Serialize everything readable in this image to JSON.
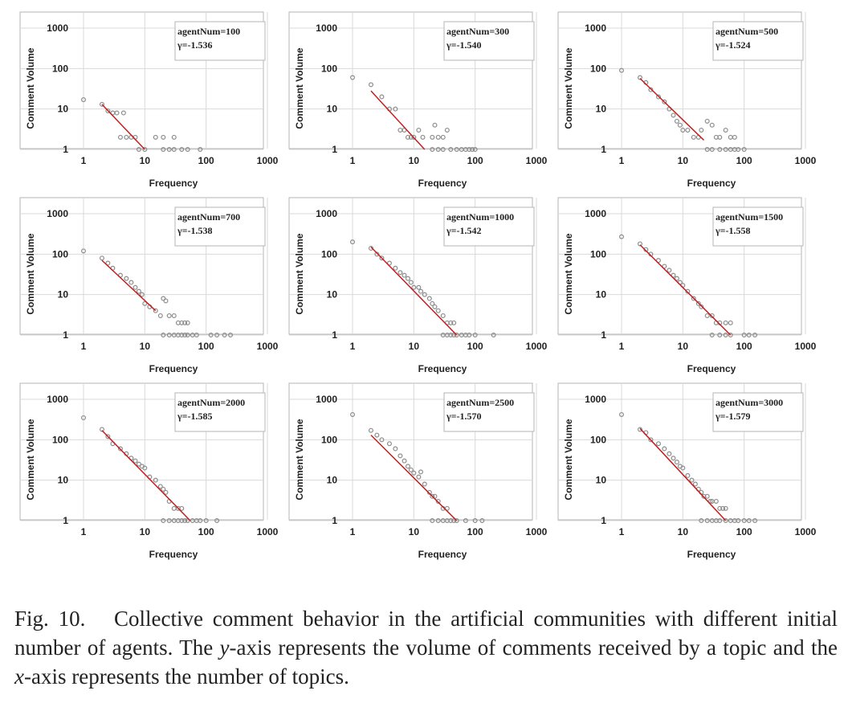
{
  "caption": {
    "label": "Fig. 10.",
    "text_before_y": "Collective comment behavior in the artificial communities with different initial number of agents. The ",
    "y_var": "y",
    "text_between": "-axis represents the volume of comments received by a topic and the ",
    "x_var": "x",
    "text_after_x": "-axis represents the number of topics."
  },
  "colors": {
    "points": "#8c8c8c",
    "fit_line": "#c02020",
    "grid": "#d9d9d9",
    "frame": "#b5b5b5"
  },
  "chart_data": [
    {
      "type": "scatter",
      "scale": "log-log",
      "xlabel": "Frequency",
      "ylabel": "Comment Volume",
      "xlim": [
        1,
        1000
      ],
      "ylim": [
        1,
        1000
      ],
      "xticks": [
        "1",
        "10",
        "100",
        "1000"
      ],
      "yticks": [
        "1",
        "10",
        "100",
        "1000"
      ],
      "grid": true,
      "legend_position": "top-right",
      "legend": [
        "agentNum=100",
        "γ=-1.536"
      ],
      "points": [
        [
          1,
          17
        ],
        [
          2,
          13
        ],
        [
          2.5,
          9
        ],
        [
          3,
          8
        ],
        [
          3.5,
          8
        ],
        [
          4,
          2
        ],
        [
          4.5,
          8
        ],
        [
          5,
          2
        ],
        [
          6,
          2
        ],
        [
          7,
          2
        ],
        [
          8,
          1
        ],
        [
          10,
          1
        ],
        [
          15,
          2
        ],
        [
          20,
          1
        ],
        [
          20,
          2
        ],
        [
          25,
          1
        ],
        [
          30,
          1
        ],
        [
          30,
          2
        ],
        [
          40,
          1
        ],
        [
          50,
          1
        ],
        [
          80,
          1
        ]
      ],
      "fit": [
        [
          2,
          13
        ],
        [
          10,
          1
        ]
      ]
    },
    {
      "type": "scatter",
      "scale": "log-log",
      "xlabel": "Frequency",
      "ylabel": "Comment Volume",
      "xlim": [
        1,
        1000
      ],
      "ylim": [
        1,
        1000
      ],
      "xticks": [
        "1",
        "10",
        "100",
        "1000"
      ],
      "yticks": [
        "1",
        "10",
        "100",
        "1000"
      ],
      "grid": true,
      "legend_position": "top-right",
      "legend": [
        "agentNum=300",
        "γ=-1.540"
      ],
      "points": [
        [
          1,
          60
        ],
        [
          2,
          40
        ],
        [
          3,
          20
        ],
        [
          4,
          10
        ],
        [
          5,
          10
        ],
        [
          6,
          3
        ],
        [
          7,
          3
        ],
        [
          8,
          2
        ],
        [
          9,
          2
        ],
        [
          10,
          2
        ],
        [
          12,
          3
        ],
        [
          14,
          2
        ],
        [
          20,
          2
        ],
        [
          22,
          4
        ],
        [
          25,
          2
        ],
        [
          30,
          2
        ],
        [
          35,
          3
        ],
        [
          20,
          1
        ],
        [
          25,
          1
        ],
        [
          30,
          1
        ],
        [
          40,
          1
        ],
        [
          50,
          1
        ],
        [
          60,
          1
        ],
        [
          70,
          1
        ],
        [
          80,
          1
        ],
        [
          90,
          1
        ],
        [
          100,
          1
        ]
      ],
      "fit": [
        [
          2,
          28
        ],
        [
          15,
          1
        ]
      ]
    },
    {
      "type": "scatter",
      "scale": "log-log",
      "xlabel": "Frequency",
      "ylabel": "Comment Volume",
      "xlim": [
        1,
        1000
      ],
      "ylim": [
        1,
        1000
      ],
      "xticks": [
        "1",
        "10",
        "100",
        "1000"
      ],
      "yticks": [
        "1",
        "10",
        "100",
        "1000"
      ],
      "grid": true,
      "legend_position": "top-right",
      "legend": [
        "agentNum=500",
        "γ=-1.524"
      ],
      "points": [
        [
          1,
          90
        ],
        [
          2,
          60
        ],
        [
          2.5,
          45
        ],
        [
          3,
          30
        ],
        [
          4,
          20
        ],
        [
          5,
          15
        ],
        [
          6,
          10
        ],
        [
          7,
          7
        ],
        [
          8,
          5
        ],
        [
          9,
          4
        ],
        [
          10,
          3
        ],
        [
          12,
          3
        ],
        [
          15,
          2
        ],
        [
          18,
          2
        ],
        [
          20,
          3
        ],
        [
          25,
          5
        ],
        [
          30,
          4
        ],
        [
          35,
          2
        ],
        [
          40,
          2
        ],
        [
          50,
          3
        ],
        [
          60,
          2
        ],
        [
          70,
          2
        ],
        [
          25,
          1
        ],
        [
          30,
          1
        ],
        [
          40,
          1
        ],
        [
          50,
          1
        ],
        [
          60,
          1
        ],
        [
          70,
          1
        ],
        [
          80,
          1
        ],
        [
          100,
          1
        ]
      ],
      "fit": [
        [
          2,
          57
        ],
        [
          22,
          1.7
        ]
      ]
    },
    {
      "type": "scatter",
      "scale": "log-log",
      "xlabel": "Frequency",
      "ylabel": "Comment Volume",
      "xlim": [
        1,
        1000
      ],
      "ylim": [
        1,
        1000
      ],
      "xticks": [
        "1",
        "10",
        "100",
        "1000"
      ],
      "yticks": [
        "1",
        "10",
        "100",
        "1000"
      ],
      "grid": true,
      "legend_position": "top-right",
      "legend": [
        "agentNum=700",
        "γ=-1.538"
      ],
      "points": [
        [
          1,
          120
        ],
        [
          2,
          80
        ],
        [
          2.5,
          60
        ],
        [
          3,
          45
        ],
        [
          4,
          30
        ],
        [
          5,
          25
        ],
        [
          6,
          20
        ],
        [
          7,
          15
        ],
        [
          8,
          12
        ],
        [
          9,
          10
        ],
        [
          10,
          6
        ],
        [
          12,
          5
        ],
        [
          15,
          4
        ],
        [
          18,
          3
        ],
        [
          20,
          8
        ],
        [
          22,
          7
        ],
        [
          25,
          3
        ],
        [
          30,
          3
        ],
        [
          35,
          2
        ],
        [
          40,
          2
        ],
        [
          45,
          2
        ],
        [
          50,
          2
        ],
        [
          20,
          1
        ],
        [
          25,
          1
        ],
        [
          30,
          1
        ],
        [
          35,
          1
        ],
        [
          40,
          1
        ],
        [
          45,
          1
        ],
        [
          50,
          1
        ],
        [
          60,
          1
        ],
        [
          70,
          1
        ],
        [
          120,
          1
        ],
        [
          150,
          1
        ],
        [
          200,
          1
        ],
        [
          250,
          1
        ]
      ],
      "fit": [
        [
          2,
          70
        ],
        [
          15,
          4
        ]
      ]
    },
    {
      "type": "scatter",
      "scale": "log-log",
      "xlabel": "Frequency",
      "ylabel": "Comment Volume",
      "xlim": [
        1,
        1000
      ],
      "ylim": [
        1,
        1000
      ],
      "xticks": [
        "1",
        "10",
        "100",
        "1000"
      ],
      "yticks": [
        "1",
        "10",
        "100",
        "1000"
      ],
      "grid": true,
      "legend_position": "top-right",
      "legend": [
        "agentNum=1000",
        "γ=-1.542"
      ],
      "points": [
        [
          1,
          200
        ],
        [
          2,
          140
        ],
        [
          2.5,
          100
        ],
        [
          3,
          80
        ],
        [
          4,
          60
        ],
        [
          5,
          45
        ],
        [
          6,
          35
        ],
        [
          7,
          30
        ],
        [
          8,
          25
        ],
        [
          9,
          20
        ],
        [
          10,
          15
        ],
        [
          12,
          15
        ],
        [
          13,
          12
        ],
        [
          15,
          10
        ],
        [
          18,
          8
        ],
        [
          20,
          6
        ],
        [
          22,
          5
        ],
        [
          25,
          4
        ],
        [
          30,
          3
        ],
        [
          35,
          2
        ],
        [
          40,
          2
        ],
        [
          45,
          2
        ],
        [
          30,
          1
        ],
        [
          35,
          1
        ],
        [
          40,
          1
        ],
        [
          45,
          1
        ],
        [
          50,
          1
        ],
        [
          60,
          1
        ],
        [
          70,
          1
        ],
        [
          80,
          1
        ],
        [
          100,
          1
        ],
        [
          200,
          1
        ]
      ],
      "fit": [
        [
          2,
          150
        ],
        [
          50,
          1
        ]
      ]
    },
    {
      "type": "scatter",
      "scale": "log-log",
      "xlabel": "Frequency",
      "ylabel": "Comment Volume",
      "xlim": [
        1,
        1000
      ],
      "ylim": [
        1,
        1000
      ],
      "xticks": [
        "1",
        "10",
        "100",
        "1000"
      ],
      "yticks": [
        "1",
        "10",
        "100",
        "1000"
      ],
      "grid": true,
      "legend_position": "top-right",
      "legend": [
        "agentNum=1500",
        "γ=-1.558"
      ],
      "points": [
        [
          1,
          270
        ],
        [
          2,
          180
        ],
        [
          2.5,
          130
        ],
        [
          3,
          100
        ],
        [
          4,
          70
        ],
        [
          5,
          50
        ],
        [
          6,
          40
        ],
        [
          7,
          30
        ],
        [
          8,
          25
        ],
        [
          9,
          20
        ],
        [
          10,
          17
        ],
        [
          12,
          12
        ],
        [
          15,
          8
        ],
        [
          18,
          6
        ],
        [
          20,
          5
        ],
        [
          25,
          3
        ],
        [
          30,
          3
        ],
        [
          35,
          2
        ],
        [
          40,
          2
        ],
        [
          50,
          2
        ],
        [
          60,
          2
        ],
        [
          30,
          1
        ],
        [
          40,
          1
        ],
        [
          50,
          1
        ],
        [
          60,
          1
        ],
        [
          100,
          1
        ],
        [
          120,
          1
        ],
        [
          150,
          1
        ]
      ],
      "fit": [
        [
          2,
          170
        ],
        [
          60,
          1
        ]
      ]
    },
    {
      "type": "scatter",
      "scale": "log-log",
      "xlabel": "Frequency",
      "ylabel": "Comment Volume",
      "xlim": [
        1,
        1000
      ],
      "ylim": [
        1,
        1000
      ],
      "xticks": [
        "1",
        "10",
        "100",
        "1000"
      ],
      "yticks": [
        "1",
        "10",
        "100",
        "1000"
      ],
      "grid": true,
      "legend_position": "top-right",
      "legend": [
        "agentNum=2000",
        "γ=-1.585"
      ],
      "points": [
        [
          1,
          350
        ],
        [
          2,
          180
        ],
        [
          2.5,
          120
        ],
        [
          3,
          80
        ],
        [
          4,
          60
        ],
        [
          5,
          45
        ],
        [
          6,
          35
        ],
        [
          7,
          30
        ],
        [
          8,
          25
        ],
        [
          9,
          22
        ],
        [
          10,
          20
        ],
        [
          12,
          12
        ],
        [
          15,
          10
        ],
        [
          18,
          7
        ],
        [
          20,
          6
        ],
        [
          22,
          5
        ],
        [
          25,
          3
        ],
        [
          30,
          2
        ],
        [
          35,
          2
        ],
        [
          40,
          2
        ],
        [
          20,
          1
        ],
        [
          25,
          1
        ],
        [
          30,
          1
        ],
        [
          35,
          1
        ],
        [
          40,
          1
        ],
        [
          45,
          1
        ],
        [
          50,
          1
        ],
        [
          60,
          1
        ],
        [
          70,
          1
        ],
        [
          80,
          1
        ],
        [
          100,
          1
        ],
        [
          150,
          1
        ]
      ],
      "fit": [
        [
          2,
          170
        ],
        [
          55,
          1
        ]
      ]
    },
    {
      "type": "scatter",
      "scale": "log-log",
      "xlabel": "Frequency",
      "ylabel": "Comment Volume",
      "xlim": [
        1,
        1000
      ],
      "ylim": [
        1,
        1000
      ],
      "xticks": [
        "1",
        "10",
        "100",
        "1000"
      ],
      "yticks": [
        "1",
        "10",
        "100",
        "1000"
      ],
      "grid": true,
      "legend_position": "top-right",
      "legend": [
        "agentNum=2500",
        "γ=-1.570"
      ],
      "points": [
        [
          1,
          420
        ],
        [
          2,
          170
        ],
        [
          2.5,
          130
        ],
        [
          3,
          100
        ],
        [
          4,
          80
        ],
        [
          5,
          60
        ],
        [
          6,
          40
        ],
        [
          7,
          30
        ],
        [
          8,
          22
        ],
        [
          9,
          18
        ],
        [
          10,
          15
        ],
        [
          12,
          12
        ],
        [
          13,
          16
        ],
        [
          15,
          8
        ],
        [
          18,
          5
        ],
        [
          20,
          4
        ],
        [
          22,
          4
        ],
        [
          25,
          3
        ],
        [
          30,
          2
        ],
        [
          35,
          2
        ],
        [
          20,
          1
        ],
        [
          25,
          1
        ],
        [
          30,
          1
        ],
        [
          35,
          1
        ],
        [
          40,
          1
        ],
        [
          45,
          1
        ],
        [
          50,
          1
        ],
        [
          70,
          1
        ],
        [
          100,
          1
        ],
        [
          130,
          1
        ]
      ],
      "fit": [
        [
          2,
          130
        ],
        [
          50,
          1
        ]
      ]
    },
    {
      "type": "scatter",
      "scale": "log-log",
      "xlabel": "Frequency",
      "ylabel": "Comment Volume",
      "xlim": [
        1,
        1000
      ],
      "ylim": [
        1,
        1000
      ],
      "xticks": [
        "1",
        "10",
        "100",
        "1000"
      ],
      "yticks": [
        "1",
        "10",
        "100",
        "1000"
      ],
      "grid": true,
      "legend_position": "top-right",
      "legend": [
        "agentNum=3000",
        "γ=-1.579"
      ],
      "points": [
        [
          1,
          420
        ],
        [
          2,
          180
        ],
        [
          2.5,
          150
        ],
        [
          3,
          100
        ],
        [
          4,
          80
        ],
        [
          5,
          60
        ],
        [
          6,
          45
        ],
        [
          7,
          35
        ],
        [
          8,
          28
        ],
        [
          9,
          22
        ],
        [
          10,
          20
        ],
        [
          12,
          13
        ],
        [
          14,
          10
        ],
        [
          16,
          8
        ],
        [
          18,
          6
        ],
        [
          20,
          5
        ],
        [
          22,
          4
        ],
        [
          25,
          4
        ],
        [
          28,
          3
        ],
        [
          30,
          3
        ],
        [
          35,
          3
        ],
        [
          40,
          2
        ],
        [
          45,
          2
        ],
        [
          50,
          2
        ],
        [
          20,
          1
        ],
        [
          25,
          1
        ],
        [
          30,
          1
        ],
        [
          35,
          1
        ],
        [
          40,
          1
        ],
        [
          50,
          1
        ],
        [
          60,
          1
        ],
        [
          70,
          1
        ],
        [
          80,
          1
        ],
        [
          100,
          1
        ],
        [
          120,
          1
        ],
        [
          150,
          1
        ]
      ],
      "fit": [
        [
          2,
          190
        ],
        [
          50,
          1
        ]
      ]
    }
  ]
}
